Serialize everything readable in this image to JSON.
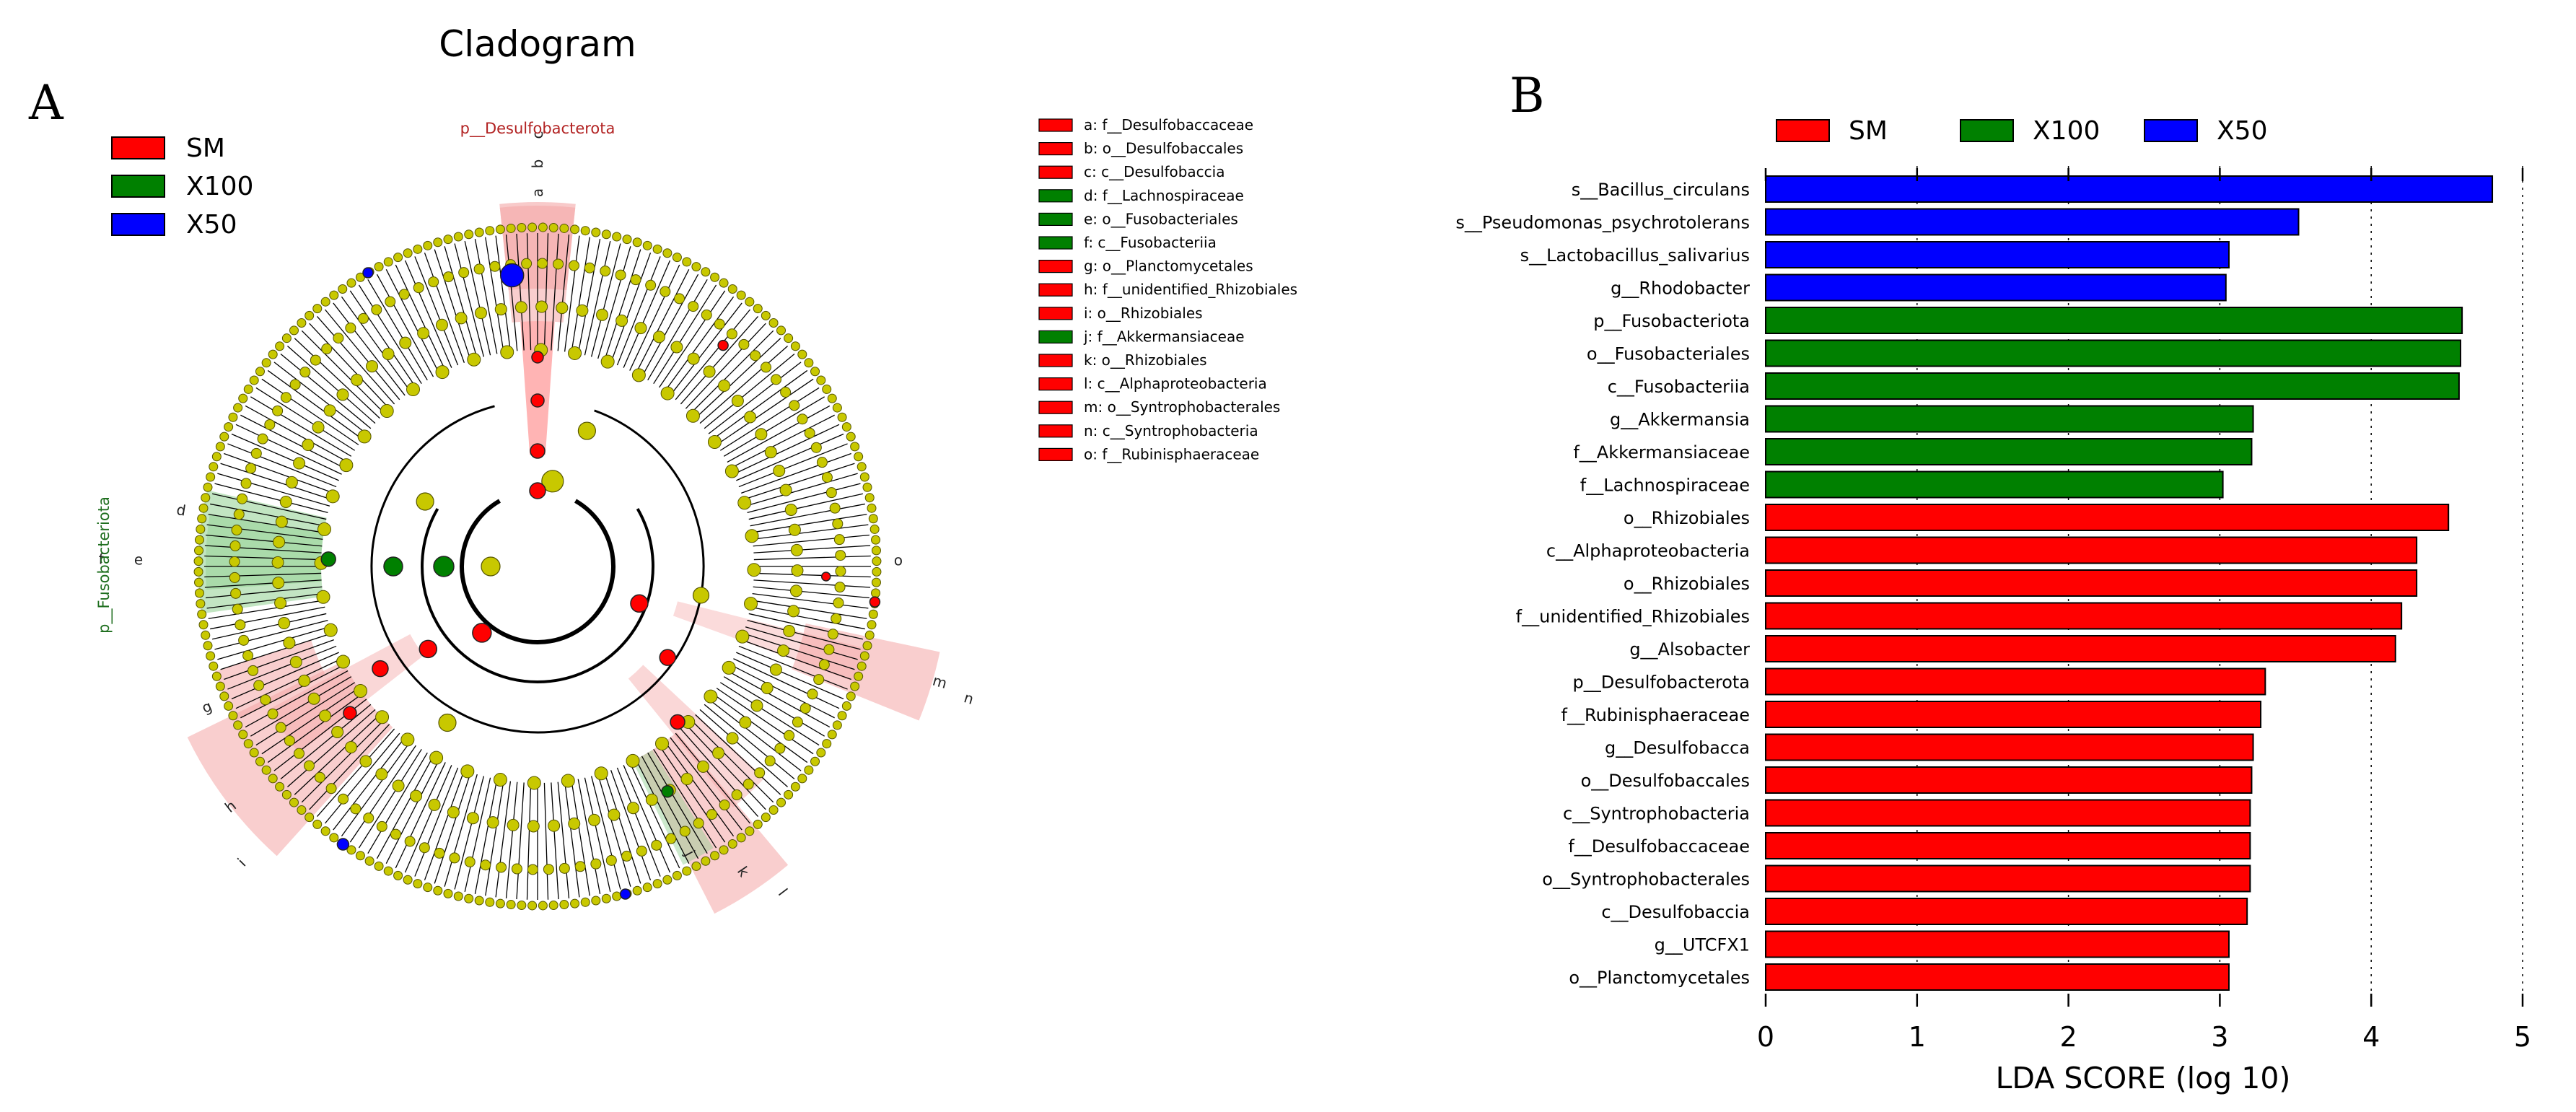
{
  "chart_data": [
    {
      "type": "cladogram",
      "panel_label": "A",
      "title": "Cladogram",
      "legend": [
        {
          "label": "SM",
          "color": "#ff0000"
        },
        {
          "label": "X100",
          "color": "#008000"
        },
        {
          "label": "X50",
          "color": "#0000ff"
        }
      ],
      "clade_labels": [
        {
          "label": "p__Desulfobacterota",
          "group": "SM"
        },
        {
          "label": "p__Fusobacteriota",
          "group": "X100"
        }
      ],
      "key": [
        {
          "letter": "a",
          "taxon": "a: f__Desulfobaccaceae",
          "group": "SM"
        },
        {
          "letter": "b",
          "taxon": "b: o__Desulfobaccales",
          "group": "SM"
        },
        {
          "letter": "c",
          "taxon": "c: c__Desulfobaccia",
          "group": "SM"
        },
        {
          "letter": "d",
          "taxon": "d: f__Lachnospiraceae",
          "group": "X100"
        },
        {
          "letter": "e",
          "taxon": "e: o__Fusobacteriales",
          "group": "X100"
        },
        {
          "letter": "f",
          "taxon": "f: c__Fusobacteriia",
          "group": "X100"
        },
        {
          "letter": "g",
          "taxon": "g: o__Planctomycetales",
          "group": "SM"
        },
        {
          "letter": "h",
          "taxon": "h: f__unidentified_Rhizobiales",
          "group": "SM"
        },
        {
          "letter": "i",
          "taxon": "i: o__Rhizobiales",
          "group": "SM"
        },
        {
          "letter": "j",
          "taxon": "j: f__Akkermansiaceae",
          "group": "X100"
        },
        {
          "letter": "k",
          "taxon": "k: o__Rhizobiales",
          "group": "SM"
        },
        {
          "letter": "l",
          "taxon": "l: c__Alphaproteobacteria",
          "group": "SM"
        },
        {
          "letter": "m",
          "taxon": "m: o__Syntrophobacterales",
          "group": "SM"
        },
        {
          "letter": "n",
          "taxon": "n: c__Syntrophobacteria",
          "group": "SM"
        },
        {
          "letter": "o",
          "taxon": "o: f__Rubinisphaeraceae",
          "group": "SM"
        }
      ]
    },
    {
      "type": "bar",
      "orientation": "horizontal",
      "panel_label": "B",
      "xlabel": "LDA SCORE (log 10)",
      "xlim": [
        0,
        5
      ],
      "xticks": [
        0,
        1,
        2,
        3,
        4,
        5
      ],
      "grid": "vertical dotted",
      "legend": [
        {
          "label": "SM",
          "color": "#ff0000"
        },
        {
          "label": "X100",
          "color": "#008000"
        },
        {
          "label": "X50",
          "color": "#0000ff"
        }
      ],
      "bars": [
        {
          "label": "s__Bacillus_circulans",
          "value": 4.8,
          "group": "X50"
        },
        {
          "label": "s__Pseudomonas_psychrotolerans",
          "value": 3.52,
          "group": "X50"
        },
        {
          "label": "s__Lactobacillus_salivarius",
          "value": 3.06,
          "group": "X50"
        },
        {
          "label": "g__Rhodobacter",
          "value": 3.04,
          "group": "X50"
        },
        {
          "label": "p__Fusobacteriota",
          "value": 4.6,
          "group": "X100"
        },
        {
          "label": "o__Fusobacteriales",
          "value": 4.59,
          "group": "X100"
        },
        {
          "label": "c__Fusobacteriia",
          "value": 4.58,
          "group": "X100"
        },
        {
          "label": "g__Akkermansia",
          "value": 3.22,
          "group": "X100"
        },
        {
          "label": "f__Akkermansiaceae",
          "value": 3.21,
          "group": "X100"
        },
        {
          "label": "f__Lachnospiraceae",
          "value": 3.02,
          "group": "X100"
        },
        {
          "label": "o__Rhizobiales",
          "value": 4.51,
          "group": "SM"
        },
        {
          "label": "c__Alphaproteobacteria",
          "value": 4.3,
          "group": "SM"
        },
        {
          "label": "o__Rhizobiales",
          "value": 4.3,
          "group": "SM"
        },
        {
          "label": "f__unidentified_Rhizobiales",
          "value": 4.2,
          "group": "SM"
        },
        {
          "label": "g__Alsobacter",
          "value": 4.16,
          "group": "SM"
        },
        {
          "label": "p__Desulfobacterota",
          "value": 3.3,
          "group": "SM"
        },
        {
          "label": "f__Rubinisphaeraceae",
          "value": 3.27,
          "group": "SM"
        },
        {
          "label": "g__Desulfobacca",
          "value": 3.22,
          "group": "SM"
        },
        {
          "label": "o__Desulfobaccales",
          "value": 3.21,
          "group": "SM"
        },
        {
          "label": "c__Syntrophobacteria",
          "value": 3.2,
          "group": "SM"
        },
        {
          "label": "f__Desulfobaccaceae",
          "value": 3.2,
          "group": "SM"
        },
        {
          "label": "o__Syntrophobacterales",
          "value": 3.2,
          "group": "SM"
        },
        {
          "label": "c__Desulfobaccia",
          "value": 3.18,
          "group": "SM"
        },
        {
          "label": "g__UTCFX1",
          "value": 3.06,
          "group": "SM"
        },
        {
          "label": "o__Planctomycetales",
          "value": 3.06,
          "group": "SM"
        }
      ]
    }
  ]
}
